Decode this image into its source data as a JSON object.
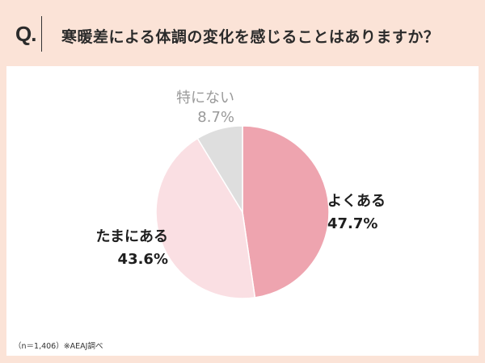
{
  "header": {
    "q_mark": "Q.",
    "title": "寒暖差による体調の変化を感じることはありますか？"
  },
  "chart_data": {
    "type": "pie",
    "title": "寒暖差による体調の変化を感じることはありますか？",
    "categories": [
      "よくある",
      "たまにある",
      "特にない"
    ],
    "values": [
      47.7,
      43.6,
      8.7
    ],
    "unit": "%",
    "colors": [
      "#eea4af",
      "#fadfe3",
      "#dedede"
    ],
    "start_angle": "12 o'clock, clockwise",
    "sample_note": "（n＝1,406）※AEAJ調べ"
  },
  "labels": {
    "often": {
      "name": "よくある",
      "value": "47.7%"
    },
    "sometimes": {
      "name": "たまにある",
      "value": "43.6%"
    },
    "none": {
      "name": "特にない",
      "value": "8.7%"
    }
  },
  "footer": {
    "note": "（n＝1,406）※AEAJ調べ"
  }
}
